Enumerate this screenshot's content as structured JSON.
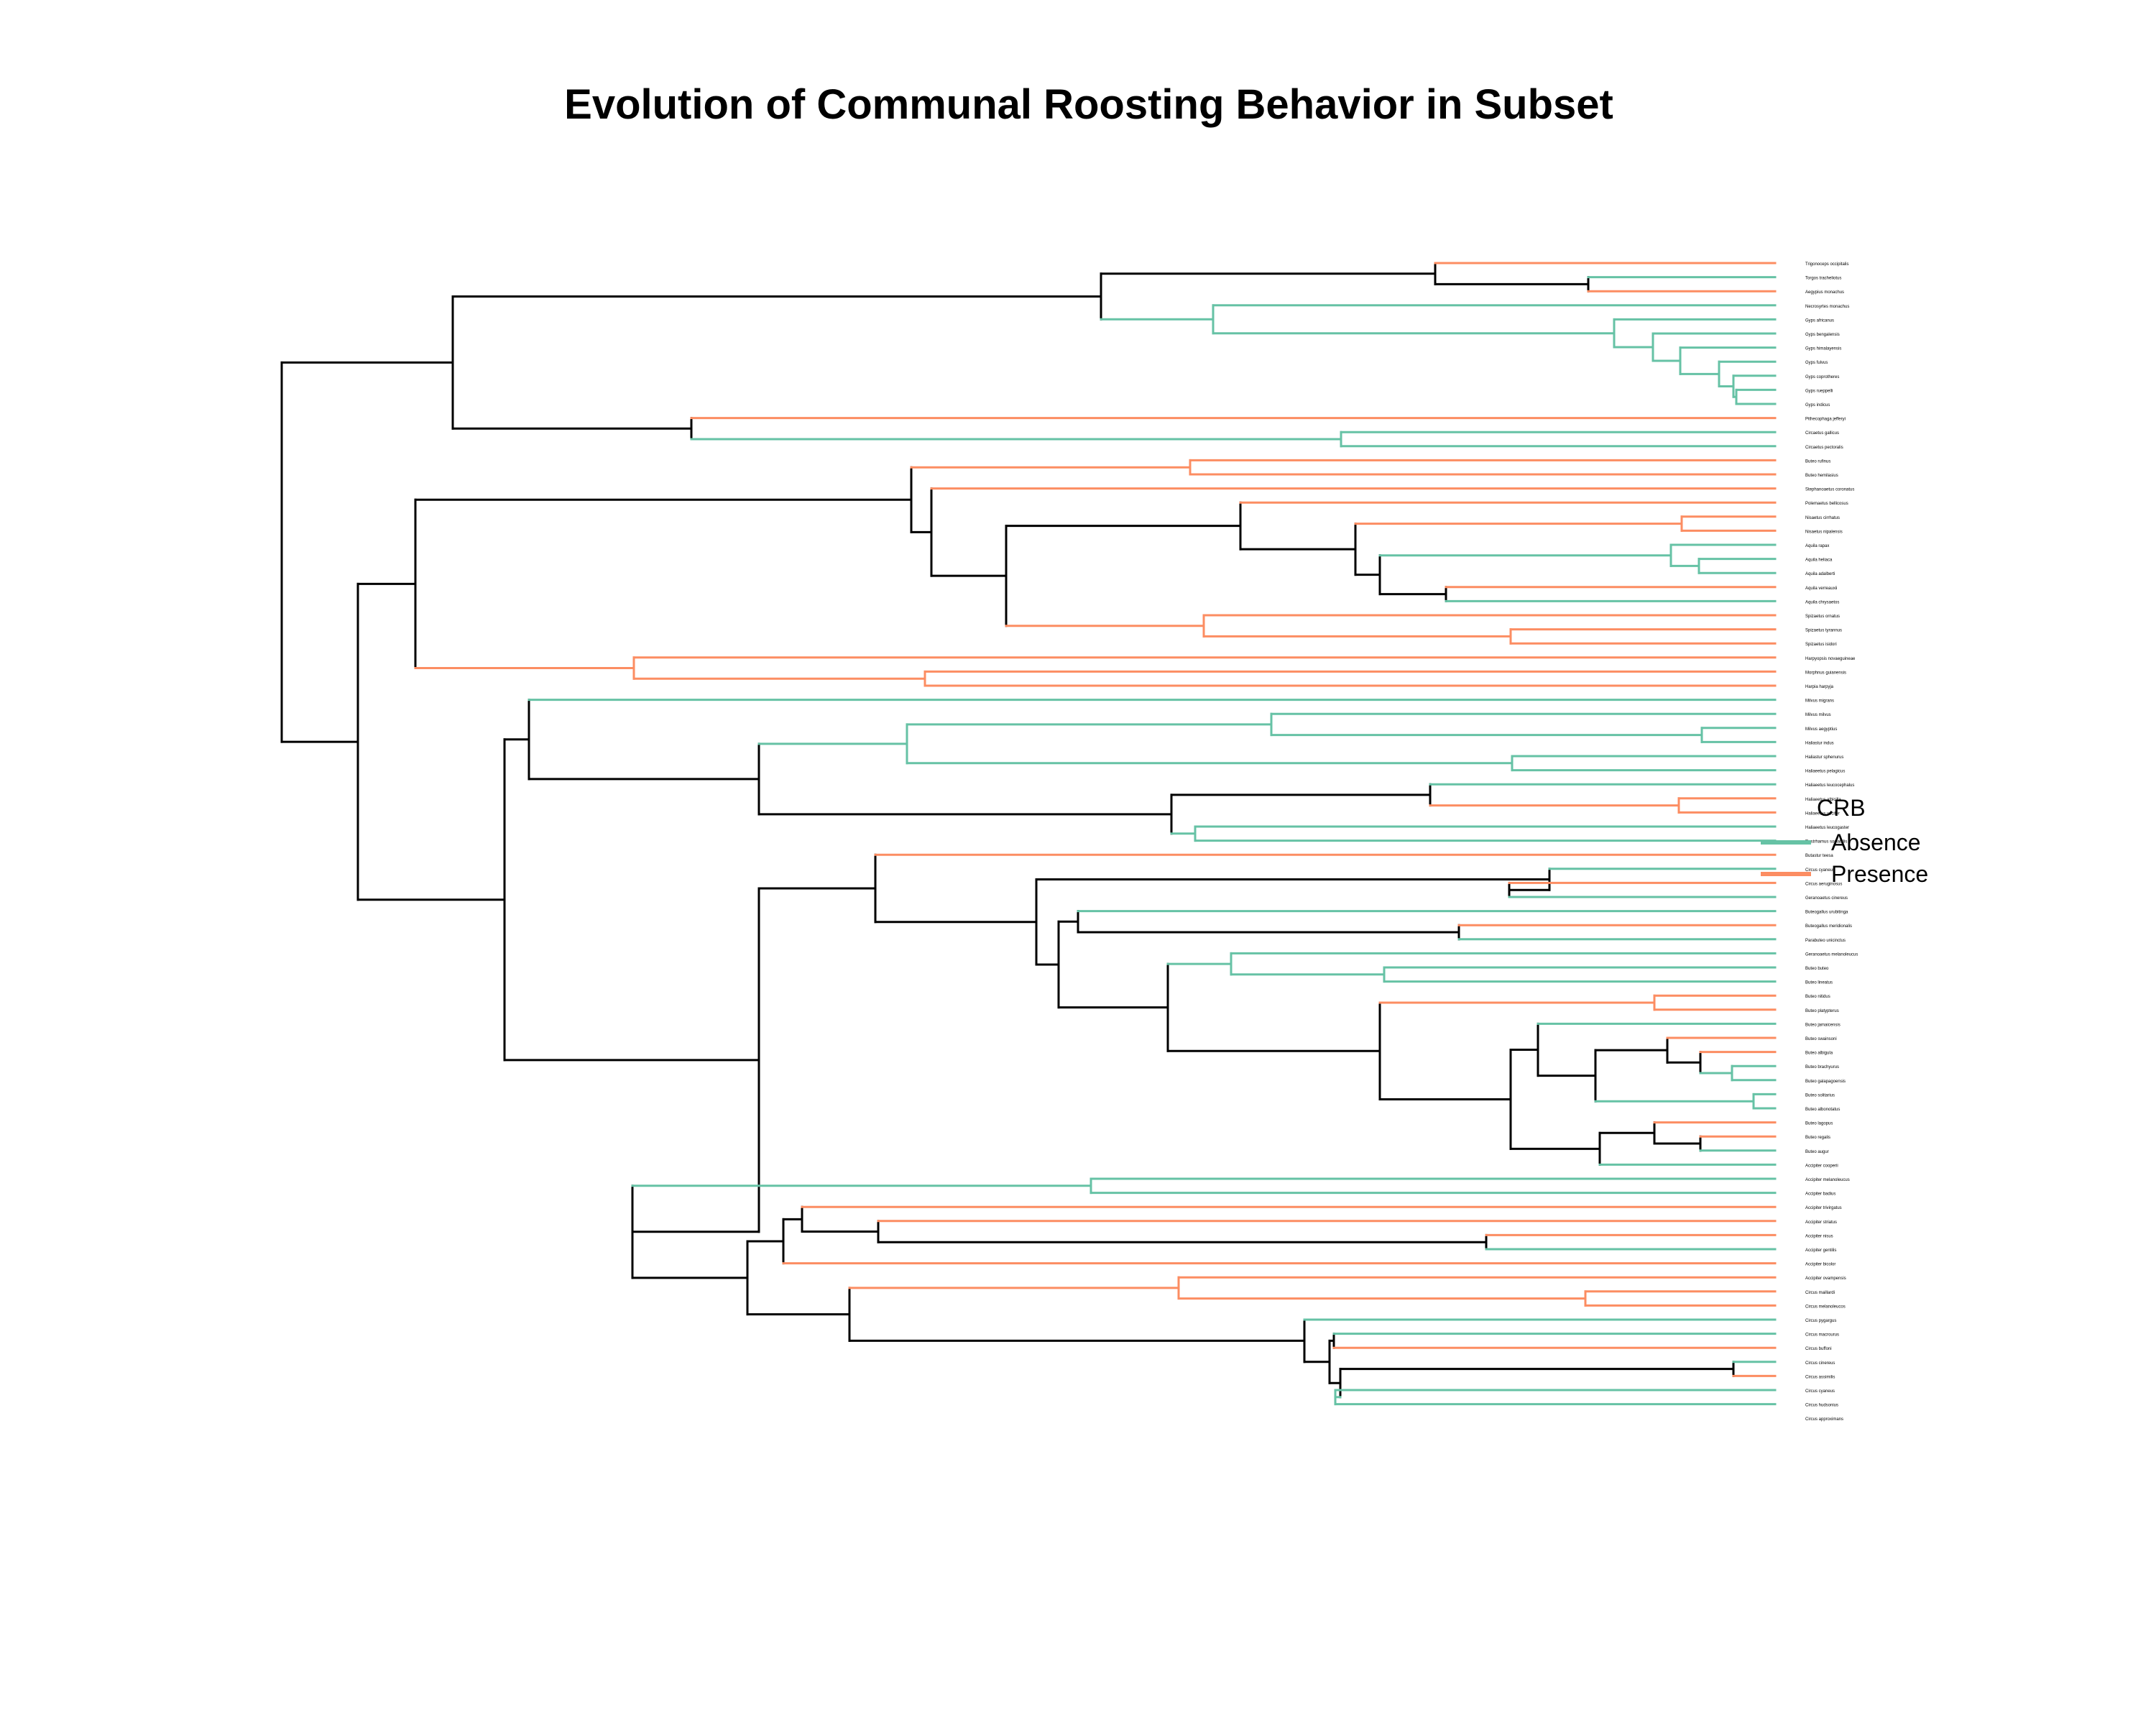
{
  "title": "Evolution of Communal Roosting Behavior in Subset",
  "legend": {
    "title": "CRB",
    "items": [
      {
        "label": "Absence",
        "color": "#66c2a5"
      },
      {
        "label": "Presence",
        "color": "#fc8d62"
      }
    ]
  },
  "colors": {
    "ancestral": "#000000",
    "absence": "#66c2a5",
    "presence": "#fc8d62"
  },
  "taxa": [
    "Trigonoceps occipitalis",
    "Torgos tracheliotus",
    "Aegypius monachus",
    "Necrosyrtes monachus",
    "Gyps africanus",
    "Gyps bengalensis",
    "Gyps himalayensis",
    "Gyps fulvus",
    "Gyps coprotheres",
    "Gyps rueppelli",
    "Gyps indicus",
    "Pithecophaga jefferyi",
    "Circaetus gallicus",
    "Circaetus pectoralis",
    "Buteo rufinus",
    "Buteo hemilasius",
    "Stephanoaetus coronatus",
    "Polemaetus bellicosus",
    "Nisaetus cirrhatus",
    "Nisaetus nipalensis",
    "Aquila rapax",
    "Aquila heliaca",
    "Aquila adalberti",
    "Aquila verreauxii",
    "Aquila chrysaetos",
    "Spizaetus ornatus",
    "Spizaetus tyrannus",
    "Spizaetus isidori",
    "Harpyopsis novaeguineae",
    "Morphnus guianensis",
    "Harpia harpyja",
    "Milvus migrans",
    "Milvus milvus",
    "Milvus aegyptius",
    "Haliastur indus",
    "Haliastur sphenurus",
    "Haliaeetus pelagicus",
    "Haliaeetus leucocephalus",
    "Haliaeetus albicilla",
    "Haliaeetus vocifer",
    "Haliaeetus leucogaster",
    "Rostrhamus sociabilis",
    "Butastur teesa",
    "Circus cyaneus",
    "Circus aeruginosus",
    "Geranoaetus cinereus",
    "Buteogallus urubitinga",
    "Buteogallus meridionalis",
    "Parabuteo unicinctus",
    "Geranoaetus melanoleucus",
    "Buteo buteo",
    "Buteo lineatus",
    "Buteo nitidus",
    "Buteo platypterus",
    "Buteo jamaicensis",
    "Buteo swainsoni",
    "Buteo albigula",
    "Buteo brachyurus",
    "Buteo galapagoensis",
    "Buteo solitarius",
    "Buteo albonotatus",
    "Buteo lagopus",
    "Buteo regalis",
    "Buteo augur",
    "Accipiter cooperii",
    "Accipiter melanoleucus",
    "Accipiter badius",
    "Accipiter trivirgatus",
    "Accipiter striatus",
    "Accipiter nisus",
    "Accipiter gentilis",
    "Accipiter bicolor",
    "Accipiter ovampensis",
    "Circus maillardi",
    "Circus melanoleucos",
    "Circus pygargus",
    "Circus macrourus",
    "Circus buffoni",
    "Circus cinereus",
    "Circus assimilis",
    "Circus cyaneus",
    "Circus hudsonius",
    "Circus approximans"
  ]
}
